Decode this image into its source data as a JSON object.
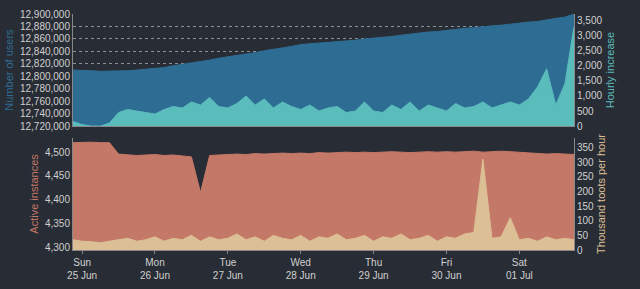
{
  "chart_data": [
    {
      "type": "area",
      "grid": true,
      "ylabel": "Number of users",
      "y2label": "Hourly increase",
      "categories": [
        null,
        null,
        null,
        null,
        null,
        null,
        null,
        null,
        null,
        null,
        null,
        null,
        null,
        null,
        null,
        null,
        null,
        null,
        null,
        null,
        null,
        null,
        null,
        null,
        null,
        null,
        null,
        null,
        null,
        null,
        null,
        null,
        null,
        null,
        null,
        null,
        null,
        null,
        null,
        null,
        null,
        null,
        null,
        null,
        null,
        null,
        null,
        null,
        null,
        null,
        null,
        null,
        null,
        null,
        null,
        null
      ],
      "ylim": [
        12720000,
        12900000
      ],
      "yticks": [
        {
          "value": 12720000,
          "label": "12,720,000"
        },
        {
          "value": 12740000,
          "label": "12,740,000"
        },
        {
          "value": 12760000,
          "label": "12,760,000"
        },
        {
          "value": 12780000,
          "label": "12,780,000"
        },
        {
          "value": 12800000,
          "label": "12,800,000"
        },
        {
          "value": 12820000,
          "label": "12,820,000"
        },
        {
          "value": 12840000,
          "label": "12,840,000"
        },
        {
          "value": 12860000,
          "label": "12,860,000"
        },
        {
          "value": 12880000,
          "label": "12,880,000"
        },
        {
          "value": 12900000,
          "label": "12,900,000"
        }
      ],
      "y2lim": [
        0,
        3720
      ],
      "y2ticks": [
        0,
        500,
        {
          "value": 1000,
          "label": "1,000"
        },
        {
          "value": 1500,
          "label": "1,500"
        },
        {
          "value": 2000,
          "label": "2,000"
        },
        {
          "value": 2500,
          "label": "2,500"
        },
        {
          "value": 3000,
          "label": "3,000"
        },
        {
          "value": 3500,
          "label": "3,500"
        }
      ],
      "series": [
        {
          "name": "Number of users",
          "color": "#2e6d93",
          "values": [
            12810000,
            12810000,
            12809000,
            12808000,
            12808000,
            12808000,
            12809000,
            12810000,
            12811000,
            12812000,
            12814000,
            12817000,
            12819000,
            12821000,
            12824000,
            12826000,
            12829000,
            12831000,
            12833000,
            12836000,
            12838000,
            12841000,
            12843000,
            12846000,
            12848000,
            12851000,
            12852000,
            12853000,
            12855000,
            12856000,
            12857000,
            12858000,
            12860000,
            12861000,
            12863000,
            12864000,
            12866000,
            12868000,
            12869000,
            12871000,
            12872000,
            12874000,
            12875000,
            12877000,
            12878000,
            12880000,
            12881000,
            12882000,
            12884000,
            12885000,
            12887000,
            12888000,
            12891000,
            12893000,
            12895000,
            12900000
          ]
        },
        {
          "name": "Hourly increase",
          "color": "#5bbcbc",
          "axis": "y2",
          "values": [
            150,
            50,
            0,
            0,
            100,
            450,
            550,
            500,
            450,
            400,
            550,
            650,
            600,
            800,
            700,
            950,
            650,
            600,
            750,
            1000,
            700,
            900,
            600,
            800,
            650,
            550,
            700,
            500,
            600,
            650,
            450,
            500,
            800,
            500,
            450,
            700,
            550,
            800,
            500,
            700,
            600,
            500,
            750,
            600,
            650,
            800,
            600,
            700,
            800,
            700,
            900,
            1300,
            1900,
            700,
            1400,
            3300
          ]
        }
      ]
    },
    {
      "type": "area",
      "grid": false,
      "ylabel": "Active instances",
      "y2label": "Thousand toots per hour",
      "categories": [
        null,
        "Sun 25 Jun",
        null,
        null,
        null,
        null,
        null,
        null,
        null,
        "Mon 26 Jun",
        null,
        null,
        null,
        null,
        null,
        null,
        null,
        "Tue 27 Jun",
        null,
        null,
        null,
        null,
        null,
        null,
        null,
        "Wed 28 Jun",
        null,
        null,
        null,
        null,
        null,
        null,
        null,
        "Thu 29 Jun",
        null,
        null,
        null,
        null,
        null,
        null,
        null,
        "Fri 30 Jun",
        null,
        null,
        null,
        null,
        null,
        null,
        null,
        "Sat 01 Jul",
        null,
        null,
        null,
        null,
        null,
        null
      ],
      "ylim": [
        4294,
        4530
      ],
      "yticks": [
        {
          "value": 4300,
          "label": "4,300"
        },
        {
          "value": 4350,
          "label": "4,350"
        },
        {
          "value": 4400,
          "label": "4,400"
        },
        {
          "value": 4450,
          "label": "4,450"
        },
        {
          "value": 4500,
          "label": "4,500"
        }
      ],
      "y2lim": [
        0,
        383
      ],
      "y2ticks": [
        0,
        50,
        100,
        150,
        200,
        250,
        300,
        350
      ],
      "series": [
        {
          "name": "Active instances",
          "color": "#c47868",
          "values": [
            4520,
            4521,
            4521,
            4520,
            4520,
            4496,
            4494,
            4493,
            4494,
            4495,
            4493,
            4494,
            4492,
            4490,
            4415,
            4493,
            4494,
            4495,
            4496,
            4495,
            4497,
            4496,
            4497,
            4498,
            4497,
            4498,
            4497,
            4499,
            4498,
            4499,
            4500,
            4499,
            4500,
            4499,
            4500,
            4501,
            4500,
            4499,
            4500,
            4501,
            4500,
            4501,
            4500,
            4501,
            4502,
            4500,
            4501,
            4502,
            4501,
            4500,
            4498,
            4497,
            4496,
            4497,
            4496,
            4495
          ]
        },
        {
          "name": "Thousand toots per hour",
          "color": "#dcbf95",
          "axis": "y2",
          "values": [
            35,
            30,
            28,
            25,
            30,
            35,
            40,
            30,
            35,
            45,
            30,
            40,
            35,
            50,
            30,
            45,
            35,
            40,
            55,
            35,
            45,
            30,
            50,
            40,
            35,
            50,
            30,
            45,
            40,
            55,
            35,
            40,
            50,
            30,
            45,
            40,
            55,
            35,
            40,
            50,
            30,
            45,
            40,
            55,
            60,
            310,
            40,
            45,
            110,
            35,
            40,
            30,
            45,
            35,
            40,
            35
          ]
        }
      ]
    }
  ]
}
